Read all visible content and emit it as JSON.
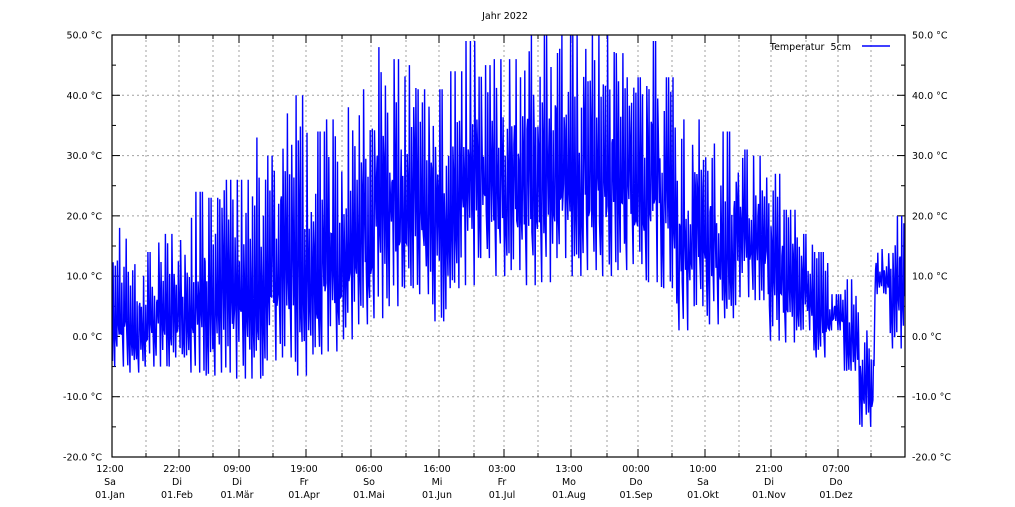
{
  "chart_data": {
    "type": "line",
    "title": "Jahr 2022",
    "xlabel": "",
    "ylabel": "",
    "ylim": [
      -20,
      50
    ],
    "y_ticks": [
      "-20.0 °C",
      "-10.0 °C",
      "0.0 °C",
      "10.0 °C",
      "20.0 °C",
      "30.0 °C",
      "40.0 °C",
      "50.0 °C"
    ],
    "y_tick_values": [
      -20,
      -10,
      0,
      10,
      20,
      30,
      40,
      50
    ],
    "x_ticks": [
      {
        "time": "12:00",
        "day": "Sa",
        "date": "01.Jan"
      },
      {
        "time": "22:00",
        "day": "Di",
        "date": "01.Feb"
      },
      {
        "time": "09:00",
        "day": "Di",
        "date": "01.Mär"
      },
      {
        "time": "19:00",
        "day": "Fr",
        "date": "01.Apr"
      },
      {
        "time": "06:00",
        "day": "So",
        "date": "01.Mai"
      },
      {
        "time": "16:00",
        "day": "Mi",
        "date": "01.Jun"
      },
      {
        "time": "03:00",
        "day": "Fr",
        "date": "01.Jul"
      },
      {
        "time": "13:00",
        "day": "Mo",
        "date": "01.Aug"
      },
      {
        "time": "00:00",
        "day": "Do",
        "date": "01.Sep"
      },
      {
        "time": "10:00",
        "day": "Sa",
        "date": "01.Okt"
      },
      {
        "time": "21:00",
        "day": "Di",
        "date": "01.Nov"
      },
      {
        "time": "07:00",
        "day": "Do",
        "date": "01.Dez"
      }
    ],
    "grid": true,
    "legend_position": "top-right",
    "series": [
      {
        "name": "Temperatur  5cm",
        "color": "#0000ff",
        "weekly_max": [
          18,
          12,
          14,
          17,
          16,
          24,
          23,
          26,
          26,
          33,
          30,
          37,
          40,
          34,
          36,
          38,
          41,
          48,
          46,
          45,
          41,
          41,
          44,
          49,
          45,
          46,
          46,
          50,
          50,
          50,
          50,
          50,
          50,
          47,
          43,
          49,
          43,
          36,
          36,
          32,
          34,
          31,
          30,
          27,
          21,
          17,
          14,
          7,
          9.5,
          1,
          14.5,
          20
        ],
        "weekly_min": [
          -5,
          -6,
          -5,
          -5,
          -3.5,
          -6,
          -6.5,
          -6,
          -7,
          -7,
          -4,
          -3.5,
          -6.5,
          -3,
          -2.5,
          -0.5,
          2,
          3,
          5,
          8,
          7,
          2.5,
          8,
          8.5,
          13,
          10,
          11,
          8.5,
          9,
          13,
          10,
          11,
          10,
          11,
          12,
          9,
          8,
          1,
          5,
          2,
          3,
          6.5,
          6,
          -0.7,
          -1,
          1,
          -3.5,
          1,
          -5.7,
          -15,
          7,
          -2
        ]
      }
    ]
  }
}
